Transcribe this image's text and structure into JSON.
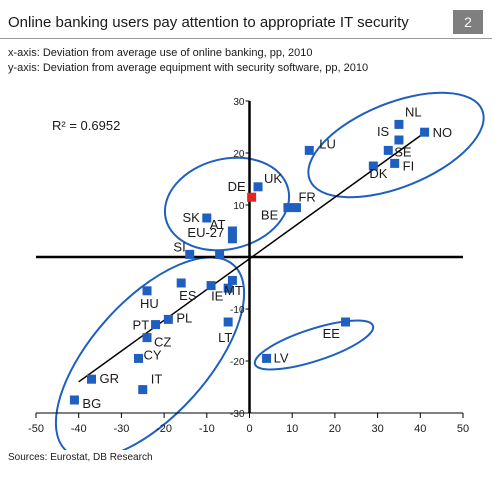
{
  "header": {
    "title": "Online banking users pay attention to appropriate IT security",
    "chart_number": "2"
  },
  "axis_descriptions": {
    "x": "x-axis: Deviation from average use of online banking, pp, 2010",
    "y": "y-axis: Deviation from average equipment with security software, pp, 2010"
  },
  "footer": {
    "source": "Sources: Eurostat, DB Research"
  },
  "chart_data": {
    "type": "scatter",
    "title": "Online banking users pay attention to appropriate IT security",
    "xlabel": "Deviation from average use of online banking, pp, 2010",
    "ylabel": "Deviation from average equipment with security software, pp, 2010",
    "xlim": [
      -50,
      50
    ],
    "ylim": [
      -30,
      30
    ],
    "xticks": [
      -50,
      -40,
      -30,
      -20,
      -10,
      0,
      10,
      20,
      30,
      40,
      50
    ],
    "yticks": [
      -30,
      -20,
      -10,
      0,
      10,
      20,
      30
    ],
    "grid": false,
    "annotation": "R² = 0.6952",
    "point_color": "#1f5fc0",
    "highlight_color": "#e8231e",
    "points": [
      {
        "label": "NL",
        "x": 35,
        "y": 25.5
      },
      {
        "label": "NO",
        "x": 41,
        "y": 24
      },
      {
        "label": "IS",
        "x": 35,
        "y": 22.5
      },
      {
        "label": "SE",
        "x": 32.5,
        "y": 20.5
      },
      {
        "label": "DK",
        "x": 29,
        "y": 17.5
      },
      {
        "label": "FI",
        "x": 34,
        "y": 18
      },
      {
        "label": "LU",
        "x": 14,
        "y": 20.5
      },
      {
        "label": "UK",
        "x": 2,
        "y": 13.5
      },
      {
        "label": "DE",
        "x": 0.5,
        "y": 11.5,
        "highlight": true
      },
      {
        "label": "FR",
        "x": 11,
        "y": 9.5
      },
      {
        "label": "BE",
        "x": 9,
        "y": 9.5
      },
      {
        "label": "SK",
        "x": -10,
        "y": 7.5
      },
      {
        "label": "AT",
        "x": -4,
        "y": 5
      },
      {
        "label": "EU-27",
        "x": -4,
        "y": 3.5
      },
      {
        "label": "SI",
        "x": -14,
        "y": 0.5
      },
      {
        "label": "",
        "x": -7,
        "y": 0.5
      },
      {
        "label": "HU",
        "x": -24,
        "y": -6.5
      },
      {
        "label": "ES",
        "x": -16,
        "y": -5
      },
      {
        "label": "IE",
        "x": -9,
        "y": -5.5
      },
      {
        "label": "MT",
        "x": -5,
        "y": -6
      },
      {
        "label": "",
        "x": -4,
        "y": -4.5
      },
      {
        "label": "PL",
        "x": -19,
        "y": -12
      },
      {
        "label": "PT",
        "x": -22,
        "y": -13
      },
      {
        "label": "CZ",
        "x": -24,
        "y": -15.5
      },
      {
        "label": "LT",
        "x": -5,
        "y": -12.5
      },
      {
        "label": "CY",
        "x": -26,
        "y": -19.5
      },
      {
        "label": "IT",
        "x": -25,
        "y": -25.5
      },
      {
        "label": "GR",
        "x": -37,
        "y": -23.5
      },
      {
        "label": "BG",
        "x": -41,
        "y": -27.5
      },
      {
        "label": "EE",
        "x": 22.5,
        "y": -12.5
      },
      {
        "label": "LV",
        "x": 4,
        "y": -19.5
      }
    ],
    "trendline": {
      "x": [
        -40,
        42
      ],
      "y": [
        -24,
        24.5
      ]
    }
  }
}
